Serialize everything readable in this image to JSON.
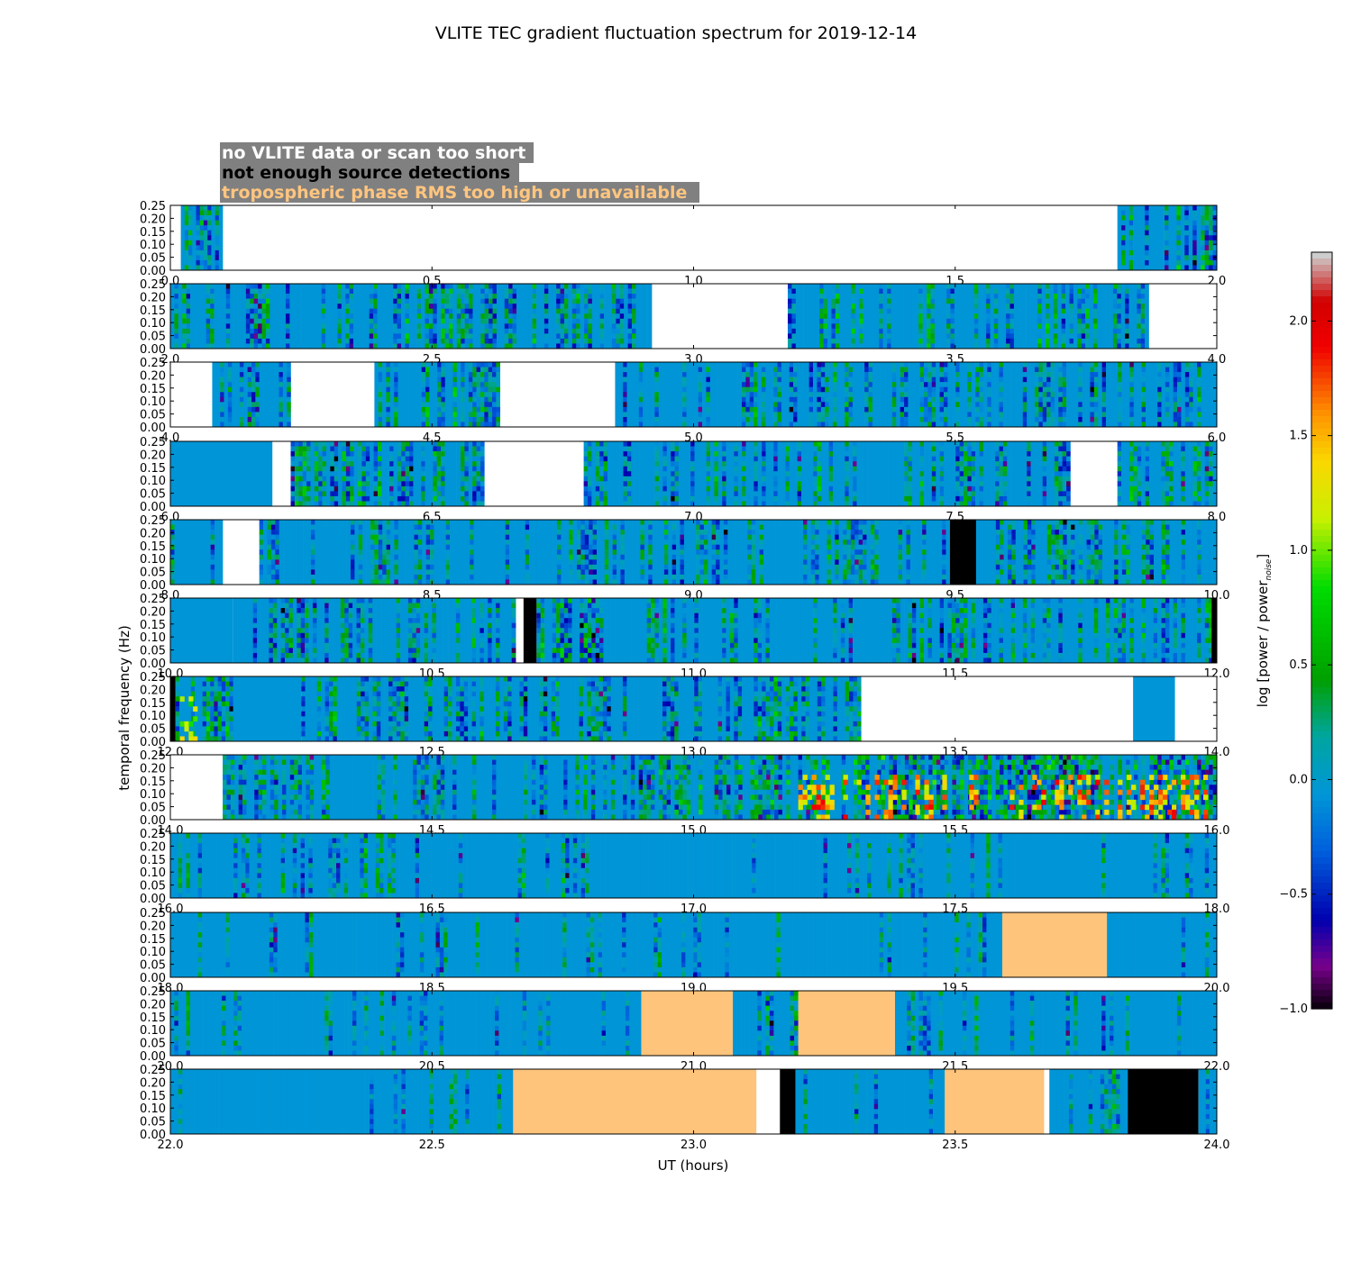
{
  "chart_data": {
    "type": "heatmap",
    "title": "VLITE TEC gradient fluctuation spectrum for 2019-12-14",
    "xlabel": "UT (hours)",
    "ylabel": "temporal frequency (Hz)",
    "ylim": [
      0.0,
      0.25
    ],
    "y_ticks": [
      "0.00",
      "0.05",
      "0.10",
      "0.15",
      "0.20",
      "0.25"
    ],
    "colorbar": {
      "label": "log [power / power",
      "label_sub": "noise",
      "label_end": "]",
      "range": [
        -1.0,
        2.3
      ],
      "ticks": [
        "−1.0",
        "−0.5",
        "0.0",
        "0.5",
        "1.0",
        "1.5",
        "2.0"
      ],
      "tick_values": [
        -1.0,
        -0.5,
        0.0,
        0.5,
        1.0,
        1.5,
        2.0
      ],
      "colormap": "nipy_spectral"
    },
    "legend": [
      {
        "text": "no VLITE data or scan too short",
        "text_color": "#ffffff",
        "background": "#808080"
      },
      {
        "text": "not enough source detections",
        "text_color": "#000000",
        "background": "#808080"
      },
      {
        "text": "tropospheric phase RMS too high or unavailable",
        "text_color": "#ffc57f",
        "background": "#808080"
      }
    ],
    "flag_colors": {
      "no_data": "#ffffff",
      "few_detections": "#000000",
      "tropo": "#fec47c",
      "baseline": "#0095d6"
    },
    "panels": [
      {
        "xlim": [
          0,
          2
        ],
        "x_ticks": [
          "0.0",
          "0.5",
          "1.0",
          "1.5",
          "2.0"
        ],
        "segments": [
          [
            "none",
            0,
            0.02
          ],
          [
            "data",
            0.02,
            0.1,
            0.55
          ],
          [
            "none",
            0.1,
            1.81
          ],
          [
            "data",
            1.81,
            1.87,
            0.55
          ],
          [
            "base",
            1.87,
            1.9
          ],
          [
            "data",
            1.9,
            2.0,
            0.6
          ]
        ]
      },
      {
        "xlim": [
          2,
          4
        ],
        "x_ticks": [
          "2.0",
          "2.5",
          "3.0",
          "3.5",
          "4.0"
        ],
        "segments": [
          [
            "data",
            2.0,
            2.92,
            0.5
          ],
          [
            "none",
            2.92,
            3.18
          ],
          [
            "data",
            3.18,
            3.87,
            0.45
          ],
          [
            "none",
            3.87,
            4.0
          ]
        ]
      },
      {
        "xlim": [
          4,
          6
        ],
        "x_ticks": [
          "4.0",
          "4.5",
          "5.0",
          "5.5",
          "6.0"
        ],
        "segments": [
          [
            "none",
            4.0,
            4.08
          ],
          [
            "data",
            4.08,
            4.23,
            0.45
          ],
          [
            "none",
            4.23,
            4.39
          ],
          [
            "data",
            4.39,
            4.63,
            0.5
          ],
          [
            "none",
            4.63,
            4.85
          ],
          [
            "data",
            4.85,
            6.0,
            0.4
          ]
        ]
      },
      {
        "xlim": [
          6,
          8
        ],
        "x_ticks": [
          "6.0",
          "6.5",
          "7.0",
          "7.5",
          "8.0"
        ],
        "segments": [
          [
            "base",
            6.0,
            6.195
          ],
          [
            "none",
            6.195,
            6.23
          ],
          [
            "data",
            6.23,
            6.6,
            0.5
          ],
          [
            "none",
            6.6,
            6.79
          ],
          [
            "data",
            6.79,
            7.72,
            0.4
          ],
          [
            "none",
            7.72,
            7.81
          ],
          [
            "data",
            7.81,
            8.0,
            0.45
          ]
        ]
      },
      {
        "xlim": [
          8,
          10
        ],
        "x_ticks": [
          "8.0",
          "8.5",
          "9.0",
          "9.5",
          "10.0"
        ],
        "segments": [
          [
            "data",
            8.0,
            8.1,
            0.35
          ],
          [
            "none",
            8.1,
            8.17
          ],
          [
            "data",
            8.17,
            9.49,
            0.35
          ],
          [
            "black",
            9.49,
            9.54
          ],
          [
            "data",
            9.54,
            10.0,
            0.45
          ]
        ]
      },
      {
        "xlim": [
          10,
          12
        ],
        "x_ticks": [
          "10.0",
          "10.5",
          "11.0",
          "11.5",
          "12.0"
        ],
        "segments": [
          [
            "base",
            10.0,
            10.12
          ],
          [
            "data",
            10.12,
            10.66,
            0.45
          ],
          [
            "black",
            10.675,
            10.7
          ],
          [
            "data",
            10.7,
            10.82,
            0.85
          ],
          [
            "data",
            10.82,
            12.0,
            0.35
          ],
          [
            "black",
            11.99,
            12.0
          ]
        ]
      },
      {
        "xlim": [
          12,
          14
        ],
        "x_ticks": [
          "12.0",
          "12.5",
          "13.0",
          "13.5",
          "14.0"
        ],
        "segments": [
          [
            "black",
            12.0,
            12.01
          ],
          [
            "data",
            12.01,
            12.12,
            0.55
          ],
          [
            "base",
            12.12,
            12.25
          ],
          [
            "data",
            12.25,
            13.32,
            0.45
          ],
          [
            "none",
            13.32,
            13.84
          ],
          [
            "base",
            13.84,
            13.92
          ],
          [
            "none",
            13.92,
            14.0
          ]
        ]
      },
      {
        "xlim": [
          14,
          16
        ],
        "x_ticks": [
          "14.0",
          "14.5",
          "15.0",
          "15.5",
          "16.0"
        ],
        "segments": [
          [
            "none",
            14.0,
            14.1
          ],
          [
            "data",
            14.1,
            14.88,
            0.35
          ],
          [
            "data",
            14.88,
            15.2,
            0.6
          ],
          [
            "data",
            15.2,
            16.0,
            0.75
          ]
        ]
      },
      {
        "xlim": [
          16,
          18
        ],
        "x_ticks": [
          "16.0",
          "16.5",
          "17.0",
          "17.5",
          "18.0"
        ],
        "segments": [
          [
            "data",
            16.0,
            16.8,
            0.3
          ],
          [
            "data",
            16.8,
            18.0,
            0.1
          ]
        ]
      },
      {
        "xlim": [
          18,
          20
        ],
        "x_ticks": [
          "18.0",
          "18.5",
          "19.0",
          "19.5",
          "20.0"
        ],
        "segments": [
          [
            "data",
            18.0,
            19.59,
            0.15
          ],
          [
            "tropo",
            19.59,
            19.79
          ],
          [
            "data",
            19.79,
            20.0,
            0.2
          ]
        ]
      },
      {
        "xlim": [
          20,
          22
        ],
        "x_ticks": [
          "20.0",
          "20.5",
          "21.0",
          "21.5",
          "22.0"
        ],
        "segments": [
          [
            "data",
            20.0,
            20.9,
            0.15
          ],
          [
            "tropo",
            20.9,
            21.075
          ],
          [
            "data",
            21.075,
            21.2,
            0.45
          ],
          [
            "tropo",
            21.2,
            21.385
          ],
          [
            "data",
            21.385,
            22.0,
            0.2
          ]
        ]
      },
      {
        "xlim": [
          22,
          24
        ],
        "x_ticks": [
          "22.0",
          "22.5",
          "23.0",
          "23.5",
          "24.0"
        ],
        "segments": [
          [
            "data",
            22.0,
            22.655,
            0.1
          ],
          [
            "tropo",
            22.655,
            23.12
          ],
          [
            "none",
            23.12,
            23.165
          ],
          [
            "black",
            23.165,
            23.195
          ],
          [
            "data",
            23.195,
            23.48,
            0.25
          ],
          [
            "tropo",
            23.48,
            23.67
          ],
          [
            "none",
            23.67,
            23.68
          ],
          [
            "data",
            23.68,
            23.83,
            0.25
          ],
          [
            "black",
            23.83,
            23.965
          ],
          [
            "data",
            23.965,
            24.0,
            0.2
          ]
        ]
      }
    ],
    "hotspots": [
      {
        "panel": 7,
        "x": [
          15.2,
          16.0
        ],
        "level": 1.9
      },
      {
        "panel": 6,
        "x": [
          12.01,
          12.06
        ],
        "level": 1.4
      }
    ]
  }
}
